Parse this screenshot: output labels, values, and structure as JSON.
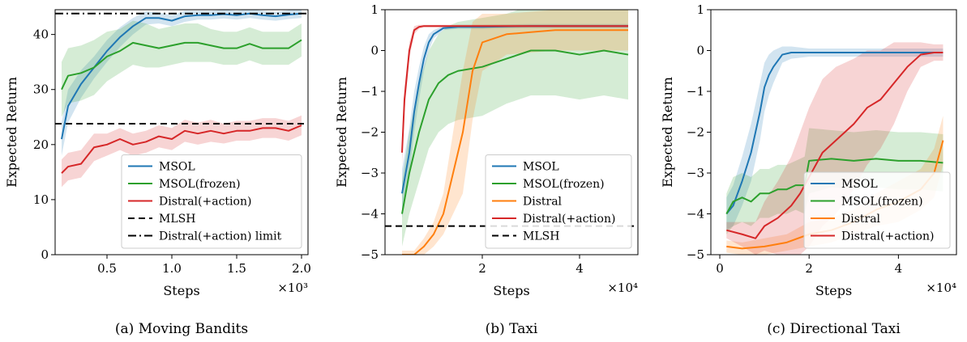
{
  "chart_data": [
    {
      "type": "line",
      "caption": "(a) Moving Bandits",
      "xlabel": "Steps",
      "ylabel": "Expected Return",
      "xscale_note": "×10³",
      "xlim": [
        0.1,
        2.05
      ],
      "ylim": [
        0,
        44.5
      ],
      "xticks": [
        0.5,
        1.0,
        1.5,
        2.0
      ],
      "xtick_labels": [
        "0.5",
        "1.0",
        "1.5",
        "2.0"
      ],
      "yticks": [
        0,
        10,
        20,
        30,
        40
      ],
      "ytick_labels": [
        "0",
        "10",
        "20",
        "30",
        "40"
      ],
      "legend_position": "lower-right",
      "series": [
        {
          "name": "MSOL",
          "color": "#1f77b4",
          "x": [
            0.15,
            0.2,
            0.3,
            0.4,
            0.5,
            0.6,
            0.7,
            0.8,
            0.9,
            1.0,
            1.1,
            1.2,
            1.3,
            1.4,
            1.5,
            1.6,
            1.7,
            1.8,
            1.9,
            2.0
          ],
          "y": [
            21,
            27,
            31,
            34,
            37,
            39.5,
            41.5,
            43,
            43,
            42.5,
            43.3,
            43.5,
            43.5,
            43.7,
            43.5,
            43.8,
            43.5,
            43.3,
            43.6,
            43.8
          ],
          "band": [
            3,
            3,
            2.5,
            2,
            2,
            1.8,
            1.5,
            1.2,
            1,
            1,
            1,
            0.8,
            0.8,
            0.8,
            0.8,
            0.8,
            0.8,
            0.8,
            0.8,
            0.8
          ]
        },
        {
          "name": "MSOL(frozen)",
          "color": "#2ca02c",
          "x": [
            0.15,
            0.2,
            0.3,
            0.4,
            0.5,
            0.6,
            0.7,
            0.8,
            0.9,
            1.0,
            1.1,
            1.2,
            1.3,
            1.4,
            1.5,
            1.6,
            1.7,
            1.8,
            1.9,
            2.0
          ],
          "y": [
            30,
            32.5,
            33,
            34,
            36,
            37,
            38.5,
            38,
            37.5,
            38,
            38.5,
            38.5,
            38,
            37.5,
            37.5,
            38.3,
            37.5,
            37.5,
            37.5,
            39
          ],
          "band": [
            5,
            5,
            5,
            5,
            4.5,
            4,
            4,
            4,
            3.5,
            3.5,
            3.5,
            3.5,
            3,
            3,
            3,
            3,
            3,
            3,
            3,
            3
          ]
        },
        {
          "name": "Distral(+action)",
          "color": "#d62728",
          "x": [
            0.15,
            0.2,
            0.3,
            0.4,
            0.5,
            0.6,
            0.7,
            0.8,
            0.9,
            1.0,
            1.1,
            1.2,
            1.3,
            1.4,
            1.5,
            1.6,
            1.7,
            1.8,
            1.9,
            2.0
          ],
          "y": [
            14.8,
            16,
            16.5,
            19.5,
            20,
            21,
            20,
            20.5,
            21.5,
            21,
            22.5,
            22,
            22.5,
            22,
            22.5,
            22.5,
            23,
            23,
            22.5,
            23.5
          ],
          "band": [
            2.5,
            2.5,
            2.5,
            2.5,
            2,
            2,
            2,
            2,
            2,
            2,
            2,
            2,
            2,
            1.8,
            1.8,
            1.8,
            1.8,
            1.8,
            1.8,
            1.8
          ]
        },
        {
          "name": "MLSH",
          "color": "#000000",
          "dash": "dashed",
          "y_const": 23.8
        },
        {
          "name": "Distral(+action) limit",
          "color": "#000000",
          "dash": "dashdot",
          "y_const": 43.8
        }
      ]
    },
    {
      "type": "line",
      "caption": "(b) Taxi",
      "xlabel": "Steps",
      "ylabel": "Expected Return",
      "xscale_note": "×10⁴",
      "xlim": [
        0,
        5.2
      ],
      "ylim": [
        -5,
        1
      ],
      "xticks": [
        2,
        4
      ],
      "xtick_labels": [
        "2",
        "4"
      ],
      "yticks": [
        -5,
        -4,
        -3,
        -2,
        -1,
        0,
        1
      ],
      "ytick_labels": [
        "−5",
        "−4",
        "−3",
        "−2",
        "−1",
        "0",
        "1"
      ],
      "legend_position": "lower-right",
      "series": [
        {
          "name": "MSOL",
          "color": "#1f77b4",
          "x": [
            0.35,
            0.5,
            0.6,
            0.7,
            0.8,
            0.9,
            1.0,
            1.2,
            1.5,
            2.0,
            3.0,
            4.0,
            5.0
          ],
          "y": [
            -3.5,
            -2.5,
            -1.5,
            -0.8,
            -0.2,
            0.2,
            0.4,
            0.55,
            0.58,
            0.58,
            0.6,
            0.6,
            0.6
          ],
          "band": [
            0.6,
            0.6,
            0.5,
            0.4,
            0.3,
            0.2,
            0.1,
            0.05,
            0.05,
            0.05,
            0.05,
            0.05,
            0.05
          ]
        },
        {
          "name": "MSOL(frozen)",
          "color": "#2ca02c",
          "x": [
            0.35,
            0.5,
            0.7,
            0.9,
            1.1,
            1.3,
            1.5,
            2.0,
            2.5,
            3.0,
            3.5,
            4.0,
            4.5,
            5.0
          ],
          "y": [
            -4,
            -3,
            -2,
            -1.2,
            -0.8,
            -0.6,
            -0.5,
            -0.4,
            -0.2,
            0,
            0,
            -0.1,
            0,
            -0.1
          ],
          "band": [
            0.8,
            1.0,
            1.2,
            1.2,
            1.2,
            1.2,
            1.2,
            1.2,
            1.1,
            1.1,
            1.1,
            1.1,
            1.1,
            1.1
          ]
        },
        {
          "name": "Distral",
          "color": "#ff7f0e",
          "x": [
            0.35,
            0.6,
            0.8,
            1.0,
            1.2,
            1.4,
            1.6,
            1.8,
            2.0,
            2.5,
            3.0,
            3.5,
            4.0,
            4.5,
            5.0
          ],
          "y": [
            -5,
            -5,
            -4.8,
            -4.5,
            -4,
            -3,
            -2,
            -0.5,
            0.2,
            0.4,
            0.45,
            0.5,
            0.5,
            0.5,
            0.5
          ],
          "band": [
            0.1,
            0.1,
            0.2,
            0.3,
            0.5,
            1.0,
            1.5,
            1.2,
            0.7,
            0.5,
            0.5,
            0.5,
            0.5,
            0.5,
            0.5
          ]
        },
        {
          "name": "Distral(+action)",
          "color": "#d62728",
          "x": [
            0.35,
            0.4,
            0.5,
            0.6,
            0.7,
            0.8,
            1.0,
            1.5,
            2.0,
            3.0,
            4.0,
            5.0
          ],
          "y": [
            -2.5,
            -1.2,
            0,
            0.5,
            0.58,
            0.6,
            0.6,
            0.6,
            0.6,
            0.6,
            0.6,
            0.6
          ],
          "band": [
            0.3,
            0.3,
            0.2,
            0.1,
            0.05,
            0.03,
            0.03,
            0.03,
            0.03,
            0.03,
            0.03,
            0.03
          ]
        },
        {
          "name": "MLSH",
          "color": "#000000",
          "dash": "dashed",
          "y_const": -4.3
        }
      ]
    },
    {
      "type": "line",
      "caption": "(c) Directional Taxi",
      "xlabel": "Steps",
      "ylabel": "Expected Return",
      "xscale_note": "×10⁴",
      "xlim": [
        -0.2,
        5.3
      ],
      "ylim": [
        -5,
        1
      ],
      "xticks": [
        0,
        2,
        4
      ],
      "xtick_labels": [
        "0",
        "2",
        "4"
      ],
      "yticks": [
        -5,
        -4,
        -3,
        -2,
        -1,
        0,
        1
      ],
      "ytick_labels": [
        "−5",
        "−4",
        "−3",
        "−2",
        "−1",
        "0",
        "1"
      ],
      "legend_position": "lower-right",
      "series": [
        {
          "name": "MSOL",
          "color": "#1f77b4",
          "x": [
            0.15,
            0.3,
            0.5,
            0.7,
            0.9,
            1.0,
            1.1,
            1.2,
            1.4,
            1.6,
            2.0,
            3.0,
            4.0,
            5.0
          ],
          "y": [
            -4,
            -3.8,
            -3.2,
            -2.5,
            -1.5,
            -0.9,
            -0.6,
            -0.4,
            -0.1,
            -0.05,
            -0.05,
            -0.05,
            -0.05,
            -0.05
          ],
          "band": [
            0.4,
            0.5,
            0.6,
            0.7,
            0.7,
            0.6,
            0.5,
            0.4,
            0.2,
            0.15,
            0.1,
            0.1,
            0.1,
            0.1
          ]
        },
        {
          "name": "MSOL(frozen)",
          "color": "#2ca02c",
          "x": [
            0.15,
            0.3,
            0.5,
            0.7,
            0.9,
            1.1,
            1.3,
            1.5,
            1.7,
            1.9,
            2.0,
            2.5,
            3.0,
            3.5,
            4.0,
            4.5,
            5.0
          ],
          "y": [
            -4,
            -3.7,
            -3.6,
            -3.7,
            -3.5,
            -3.5,
            -3.4,
            -3.4,
            -3.3,
            -3.3,
            -2.7,
            -2.65,
            -2.7,
            -2.65,
            -2.7,
            -2.7,
            -2.75
          ],
          "band": [
            0.5,
            0.6,
            0.6,
            0.6,
            0.6,
            0.6,
            0.6,
            0.6,
            0.6,
            0.7,
            0.8,
            0.7,
            0.7,
            0.7,
            0.7,
            0.7,
            0.7
          ]
        },
        {
          "name": "Distral",
          "color": "#ff7f0e",
          "x": [
            0.15,
            0.5,
            1.0,
            1.5,
            2.0,
            2.5,
            3.0,
            3.5,
            4.0,
            4.5,
            4.8,
            5.0
          ],
          "y": [
            -4.8,
            -4.85,
            -4.8,
            -4.7,
            -4.5,
            -4.4,
            -4.2,
            -3.9,
            -3.7,
            -3.4,
            -3.0,
            -2.2
          ],
          "band": [
            0.15,
            0.15,
            0.2,
            0.2,
            0.3,
            0.3,
            0.3,
            0.4,
            0.5,
            0.5,
            0.6,
            0.6
          ]
        },
        {
          "name": "Distral(+action)",
          "color": "#d62728",
          "x": [
            0.15,
            0.5,
            0.8,
            1.0,
            1.3,
            1.6,
            1.8,
            2.0,
            2.3,
            2.6,
            3.0,
            3.3,
            3.6,
            3.9,
            4.2,
            4.5,
            4.8,
            5.0
          ],
          "y": [
            -4.4,
            -4.5,
            -4.6,
            -4.3,
            -4.1,
            -3.8,
            -3.5,
            -3.1,
            -2.5,
            -2.2,
            -1.8,
            -1.4,
            -1.2,
            -0.8,
            -0.4,
            -0.1,
            -0.05,
            -0.05
          ],
          "band": [
            0.2,
            0.3,
            0.4,
            0.6,
            0.9,
            1.2,
            1.5,
            1.7,
            1.8,
            1.8,
            1.6,
            1.4,
            1.2,
            1.0,
            0.6,
            0.3,
            0.2,
            0.2
          ]
        }
      ]
    }
  ]
}
